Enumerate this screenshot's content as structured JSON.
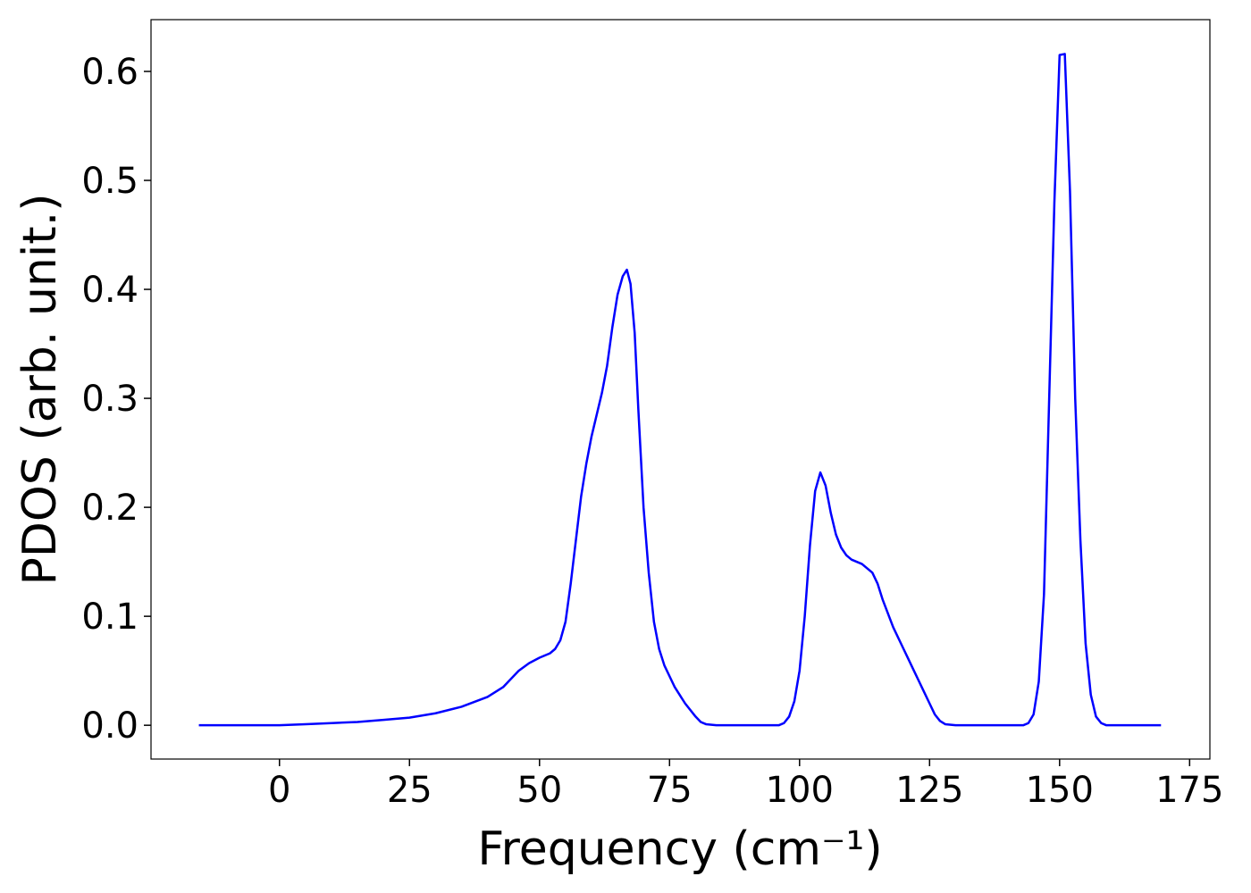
{
  "chart_data": {
    "type": "line",
    "x_label": "Frequency (cm⁻¹)",
    "y_label": "PDOS (arb. unit.)",
    "x": [
      -15.5,
      0,
      5,
      10,
      15,
      20,
      25,
      30,
      35,
      40,
      43,
      46,
      48,
      50,
      52,
      53,
      54,
      55,
      56,
      57,
      58,
      59,
      60,
      62,
      63,
      64,
      65,
      66,
      66.8,
      67.5,
      68.3,
      69,
      70,
      71,
      72,
      73,
      74,
      75,
      76,
      78,
      80,
      81,
      82,
      84,
      96,
      97,
      98,
      99,
      100,
      101,
      102,
      103,
      104,
      105,
      106,
      107,
      108,
      109,
      110,
      112,
      114,
      115,
      116,
      118,
      120,
      122,
      124,
      125,
      126,
      127,
      128,
      130,
      143,
      144,
      145,
      146,
      147,
      148,
      149,
      150,
      151,
      152,
      153,
      154,
      155,
      156,
      157,
      158,
      159,
      169.5
    ],
    "values": [
      0,
      0,
      0.001,
      0.002,
      0.003,
      0.005,
      0.007,
      0.011,
      0.017,
      0.026,
      0.035,
      0.05,
      0.057,
      0.062,
      0.066,
      0.07,
      0.078,
      0.095,
      0.13,
      0.17,
      0.21,
      0.24,
      0.265,
      0.305,
      0.33,
      0.365,
      0.395,
      0.412,
      0.418,
      0.405,
      0.36,
      0.29,
      0.2,
      0.14,
      0.095,
      0.07,
      0.055,
      0.045,
      0.035,
      0.02,
      0.008,
      0.003,
      0.001,
      0,
      0,
      0.002,
      0.008,
      0.022,
      0.05,
      0.1,
      0.165,
      0.215,
      0.232,
      0.22,
      0.195,
      0.175,
      0.163,
      0.156,
      0.152,
      0.148,
      0.14,
      0.13,
      0.115,
      0.09,
      0.07,
      0.05,
      0.03,
      0.02,
      0.01,
      0.004,
      0.001,
      0,
      0,
      0.002,
      0.01,
      0.04,
      0.12,
      0.3,
      0.48,
      0.615,
      0.616,
      0.49,
      0.3,
      0.17,
      0.075,
      0.028,
      0.008,
      0.002,
      0,
      0
    ],
    "color": "#0000ff",
    "xlim": [
      -24.7,
      178.9
    ],
    "ylim": [
      -0.031,
      0.6475
    ],
    "xticks": [
      0,
      25,
      50,
      75,
      100,
      125,
      150,
      175
    ],
    "yticks": [
      {
        "value": 0,
        "label": "0.0"
      },
      0.1,
      0.2,
      0.3,
      0.4,
      0.5,
      0.6
    ],
    "grid": false
  }
}
